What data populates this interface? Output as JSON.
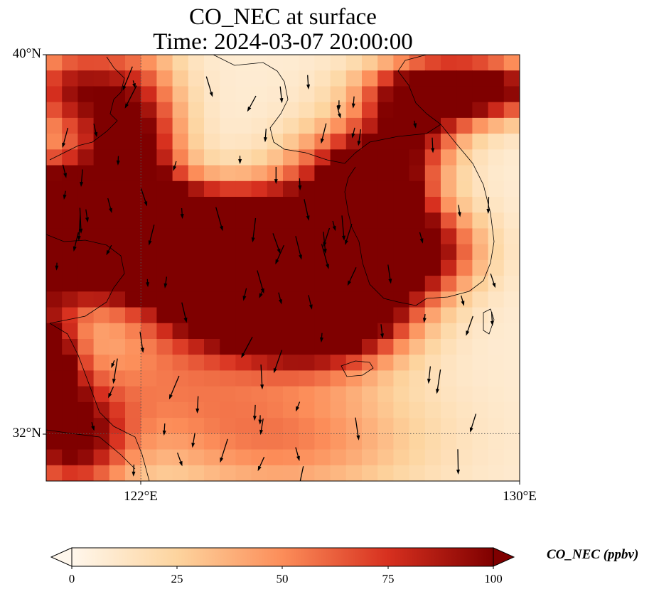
{
  "title_line1": "CO_NEC at surface",
  "title_line2": "Time: 2024-03-07 20:00:00",
  "lat_labels": [
    "40°N",
    "32°N"
  ],
  "lon_labels": [
    "122°E",
    "130°E"
  ],
  "extent": {
    "lon_min": 120,
    "lon_max": 130,
    "lat_min": 31,
    "lat_max": 40
  },
  "gridlines": {
    "lons": [
      122
    ],
    "lats": [
      32
    ]
  },
  "colormap": "OrRd",
  "colormap_stops": [
    "#fff7ec",
    "#fdd49e",
    "#fc8d59",
    "#d7301f",
    "#7f0000"
  ],
  "colorbar": {
    "label": "CO_NEC (ppbv)",
    "ticks": [
      "0",
      "25",
      "50",
      "75",
      "100"
    ],
    "min": 0,
    "max": 100,
    "extend": "both"
  }
}
